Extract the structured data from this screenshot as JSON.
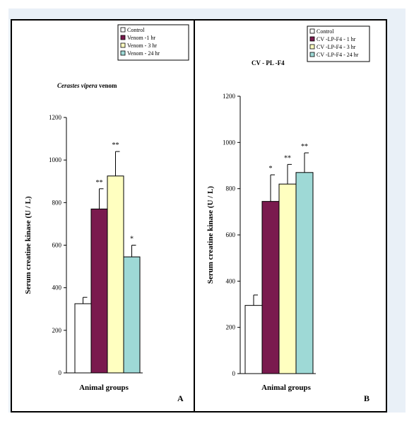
{
  "figure": {
    "background_color": "#e9f0f7",
    "panels": [
      {
        "letter": "A",
        "title_italic": "Cerastes vipera",
        "title_plain": " venom"
      },
      {
        "letter": "B",
        "title_italic": "",
        "title_plain": "CV - PL -F4"
      }
    ]
  },
  "chart_data": [
    {
      "type": "bar",
      "title": "Cerastes vipera venom",
      "xlabel": "Animal groups",
      "ylabel": "Serum creatine kinase (U / L)",
      "ylim": [
        0,
        1200
      ],
      "yticks": [
        0,
        200,
        400,
        600,
        800,
        1000,
        1200
      ],
      "grid": false,
      "legend_position": "top-right",
      "categories": [
        "Control",
        "Venom -1 hr",
        "Venom - 3 hr",
        "Venom - 24 hr"
      ],
      "colors": [
        "#ffffff",
        "#7a1a4e",
        "#ffffc0",
        "#9ed9d6"
      ],
      "values": [
        325,
        770,
        925,
        545
      ],
      "errors": [
        30,
        95,
        115,
        55
      ],
      "significance": [
        "",
        "**",
        "**",
        "*"
      ]
    },
    {
      "type": "bar",
      "title": "CV - PL -F4",
      "xlabel": "Animal groups",
      "ylabel": "Serum creatine kinase (U / L)",
      "ylim": [
        0,
        1200
      ],
      "yticks": [
        0,
        200,
        400,
        600,
        800,
        1000,
        1200
      ],
      "grid": false,
      "legend_position": "top-right",
      "categories": [
        "Control",
        "CV -LP-F4 - 1 hr",
        "CV -LP-F4 - 3 hr",
        "CV -LP-F4 - 24 hr"
      ],
      "colors": [
        "#ffffff",
        "#7a1a4e",
        "#ffffc0",
        "#9ed9d6"
      ],
      "values": [
        295,
        745,
        820,
        870
      ],
      "errors": [
        45,
        115,
        85,
        85
      ],
      "significance": [
        "",
        "*",
        "**",
        "**"
      ]
    }
  ]
}
